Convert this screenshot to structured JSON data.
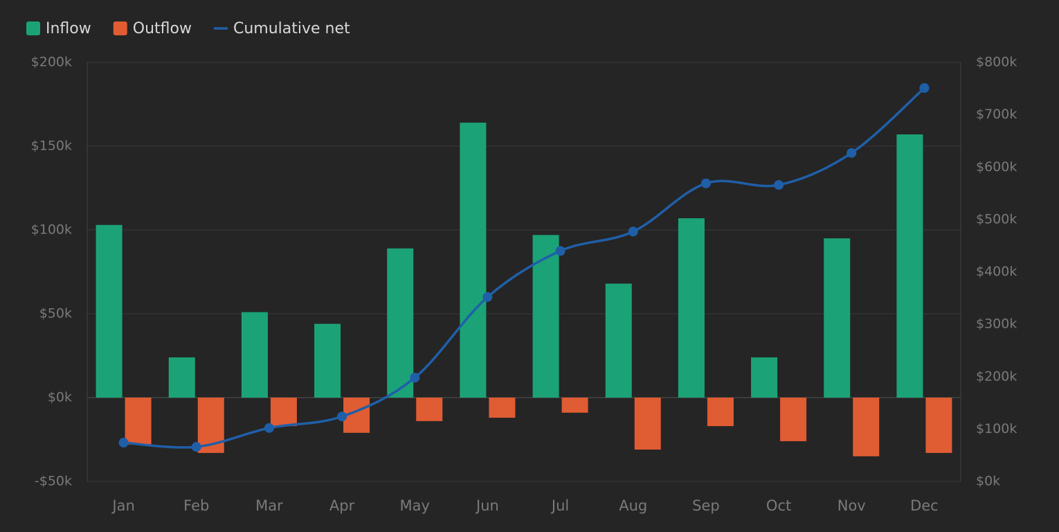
{
  "chart_data": {
    "type": "bar-line",
    "categories": [
      "Jan",
      "Feb",
      "Mar",
      "Apr",
      "May",
      "Jun",
      "Jul",
      "Aug",
      "Sep",
      "Oct",
      "Nov",
      "Dec"
    ],
    "series": [
      {
        "name": "Inflow",
        "color": "#1ba377",
        "type": "bar",
        "values": [
          103,
          24,
          51,
          44,
          89,
          164,
          97,
          68,
          107,
          24,
          95,
          157
        ]
      },
      {
        "name": "Outflow",
        "color": "#e05c33",
        "type": "bar",
        "values": [
          -28,
          -33,
          -17,
          -21,
          -14,
          -12,
          -9,
          -31,
          -17,
          -26,
          -35,
          -33
        ]
      },
      {
        "name": "Cumulative net",
        "color": "#1f5fa8",
        "type": "line",
        "axis": "y2",
        "values": [
          74,
          66,
          102,
          124,
          198,
          352,
          440,
          477,
          569,
          566,
          627,
          751
        ]
      }
    ],
    "ylim": [
      -50,
      200
    ],
    "yticks": [
      {
        "value": -50,
        "label": "-$50k"
      },
      {
        "value": 0,
        "label": "$0k"
      },
      {
        "value": 50,
        "label": "$50k"
      },
      {
        "value": 100,
        "label": "$100k"
      },
      {
        "value": 150,
        "label": "$150k"
      },
      {
        "value": 200,
        "label": "$200k"
      }
    ],
    "y2lim": [
      0,
      800
    ],
    "y2ticks": [
      {
        "value": 0,
        "label": "$0k"
      },
      {
        "value": 100,
        "label": "$100k"
      },
      {
        "value": 200,
        "label": "$200k"
      },
      {
        "value": 300,
        "label": "$300k"
      },
      {
        "value": 400,
        "label": "$400k"
      },
      {
        "value": 500,
        "label": "$500k"
      },
      {
        "value": 600,
        "label": "$600k"
      },
      {
        "value": 700,
        "label": "$700k"
      },
      {
        "value": 800,
        "label": "$800k"
      }
    ],
    "grid": true,
    "legend": "top-left"
  }
}
